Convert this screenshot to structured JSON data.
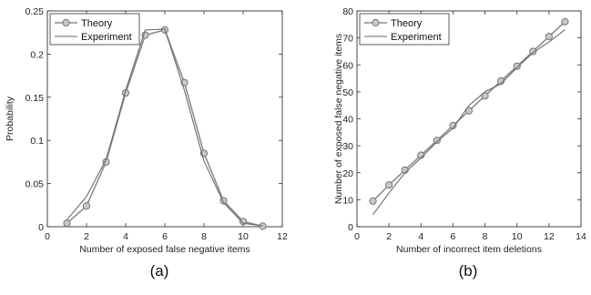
{
  "chart_data": [
    {
      "type": "line",
      "panel_label": "(a)",
      "xlabel": "Number of exposed false negative items",
      "ylabel": "Probability",
      "xlim": [
        0,
        12
      ],
      "ylim": [
        0,
        0.25
      ],
      "xticks": [
        "0",
        "2",
        "4",
        "6",
        "8",
        "10",
        "12"
      ],
      "yticks": [
        "0",
        "0.05",
        "0.1",
        "0.15",
        "0.2",
        "0.25"
      ],
      "grid": false,
      "legend_position": "top-left",
      "series": [
        {
          "name": "Theory",
          "style": "line-circle",
          "color": "#8c8c8c",
          "x": [
            1,
            2,
            3,
            4,
            5,
            6,
            7,
            8,
            9,
            10,
            11
          ],
          "y": [
            0.004,
            0.024,
            0.075,
            0.155,
            0.222,
            0.228,
            0.167,
            0.085,
            0.03,
            0.006,
            0.0005
          ]
        },
        {
          "name": "Experiment",
          "style": "line",
          "color": "#6a6a6a",
          "x": [
            1,
            2,
            3,
            4,
            5,
            6,
            7,
            8,
            9,
            10,
            11
          ],
          "y": [
            0.008,
            0.035,
            0.078,
            0.158,
            0.228,
            0.229,
            0.158,
            0.076,
            0.028,
            0.004,
            0.001
          ]
        }
      ]
    },
    {
      "type": "line",
      "panel_label": "(b)",
      "xlabel": "Number of incorrect item deletions",
      "ylabel": "Number of exposed false negative items",
      "xlim": [
        0,
        14
      ],
      "ylim": [
        0,
        80
      ],
      "xticks": [
        "0",
        "2",
        "4",
        "6",
        "8",
        "10",
        "12",
        "14"
      ],
      "yticks": [
        "0",
        "10",
        "20",
        "30",
        "40",
        "50",
        "60",
        "70",
        "80"
      ],
      "grid": false,
      "legend_position": "top-left",
      "series": [
        {
          "name": "Theory",
          "style": "line-circle",
          "color": "#8c8c8c",
          "x": [
            1,
            2,
            3,
            4,
            5,
            6,
            7,
            8,
            9,
            10,
            11,
            12,
            13
          ],
          "y": [
            9.5,
            15.5,
            21,
            26.5,
            32,
            37.5,
            43,
            48.5,
            54,
            59.5,
            65,
            70.5,
            76
          ]
        },
        {
          "name": "Experiment",
          "style": "line",
          "color": "#6a6a6a",
          "x": [
            1,
            2,
            3,
            4,
            5,
            6,
            7,
            8,
            9,
            10,
            11,
            12,
            13
          ],
          "y": [
            4.5,
            12.5,
            20,
            25.5,
            31.5,
            36.5,
            45,
            50,
            53,
            59,
            64.5,
            68.5,
            73
          ]
        }
      ]
    }
  ]
}
